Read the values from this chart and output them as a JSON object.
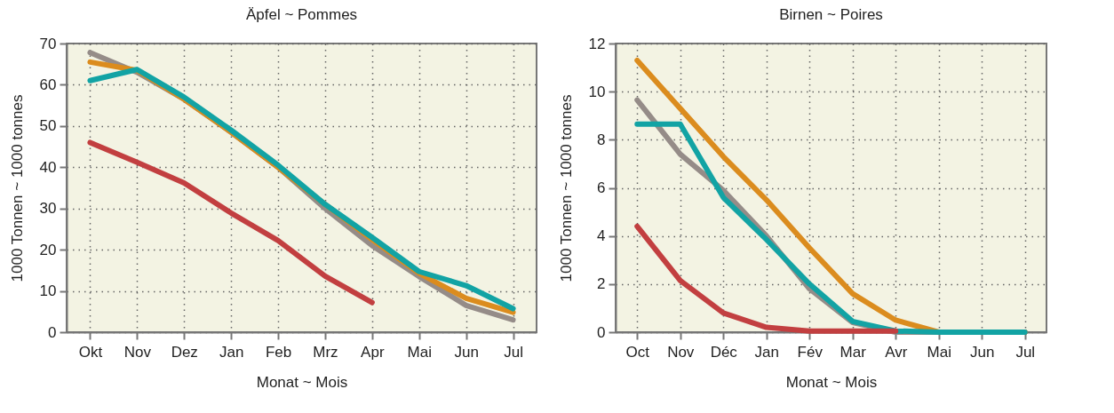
{
  "chart_data": [
    {
      "type": "line",
      "title": "Äpfel ~ Pommes",
      "xlabel": "Monat ~ Mois",
      "ylabel": "1000 Tonnen ~ 1000 tonnes",
      "categories": [
        "Okt",
        "Nov",
        "Dez",
        "Jan",
        "Feb",
        "Mrz",
        "Apr",
        "Mai",
        "Jun",
        "Jul"
      ],
      "ylim": [
        0,
        70
      ],
      "yticks": [
        0,
        10,
        20,
        30,
        40,
        50,
        60,
        70
      ],
      "grid": true,
      "line_style": "solid",
      "series": [
        {
          "color": "#958c88",
          "values": [
            67.8,
            63,
            56.5,
            48.5,
            40,
            30,
            21,
            13.5,
            6.5,
            3
          ]
        },
        {
          "color": "#db8c1e",
          "values": [
            65.5,
            63.5,
            56.5,
            48.5,
            40,
            31,
            22.5,
            14.3,
            8.2,
            4.8
          ]
        },
        {
          "color": "#12a3a4",
          "values": [
            61,
            63.7,
            57,
            49,
            40.5,
            31,
            23,
            14.7,
            11.3,
            5.7
          ]
        },
        {
          "color": "#c23f40",
          "values": [
            46,
            41.2,
            36.2,
            28.9,
            22.2,
            13.6,
            7.2,
            null,
            null,
            null
          ]
        }
      ]
    },
    {
      "type": "line",
      "title": "Birnen ~ Poires",
      "xlabel": "Monat ~ Mois",
      "ylabel": "1000 Tonnen ~ 1000 tonnes",
      "categories": [
        "Oct",
        "Nov",
        "Déc",
        "Jan",
        "Fév",
        "Mar",
        "Avr",
        "Mai",
        "Jun",
        "Jul"
      ],
      "ylim": [
        0,
        12
      ],
      "yticks": [
        0,
        2,
        4,
        6,
        8,
        10,
        12
      ],
      "grid": true,
      "line_style": "solid",
      "series": [
        {
          "color": "#958c88",
          "values": [
            9.65,
            7.4,
            5.9,
            4.0,
            1.8,
            0.4,
            0,
            0,
            0,
            0
          ]
        },
        {
          "color": "#db8c1e",
          "values": [
            11.3,
            9.3,
            7.3,
            5.5,
            3.5,
            1.6,
            0.5,
            0,
            0,
            0
          ]
        },
        {
          "color": "#12a3a4",
          "values": [
            8.65,
            8.65,
            5.6,
            3.85,
            2.0,
            0.45,
            0.05,
            0,
            0,
            0
          ]
        },
        {
          "color": "#c23f40",
          "values": [
            4.4,
            2.15,
            0.8,
            0.2,
            0.05,
            0.05,
            0.05,
            null,
            null,
            null
          ]
        }
      ]
    }
  ]
}
